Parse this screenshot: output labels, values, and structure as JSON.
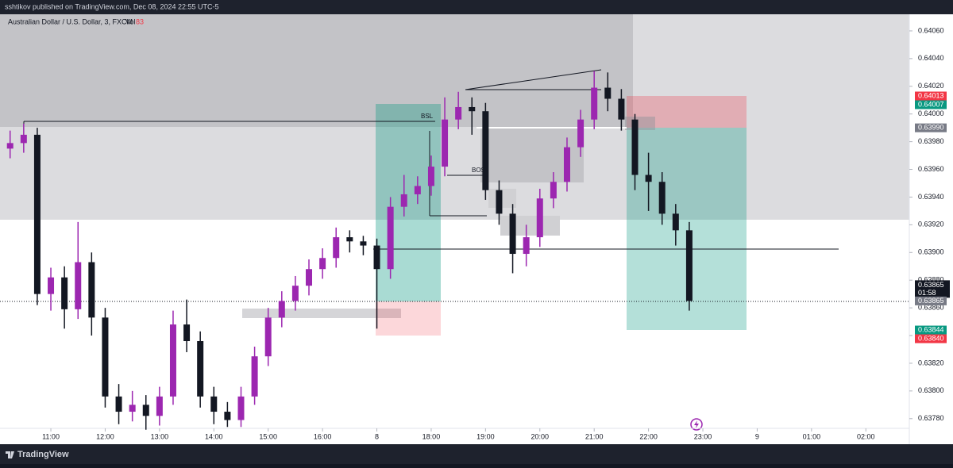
{
  "header": {
    "text": "sshtikov published on TradingView.com, Dec 08, 2024 22:55 UTC-5"
  },
  "footer": {
    "brand": "TradingView"
  },
  "chart_data": {
    "type": "candlestick",
    "symbol": "Australian Dollar / U.S. Dollar, 3, FXCM",
    "volume_label": "Vol",
    "volume_value": 83,
    "annotations": [
      "BSL",
      "BOS"
    ],
    "up_color": "#9c27b0",
    "down_color": "#131722",
    "x": [
      10.25,
      10.5,
      10.75,
      11,
      11.25,
      11.5,
      11.75,
      12,
      12.25,
      12.5,
      12.75,
      13,
      13.25,
      13.5,
      13.75,
      14,
      14.25,
      14.5,
      14.75,
      15,
      15.25,
      15.5,
      15.75,
      16,
      16.25,
      16.5,
      16.75,
      17,
      17.25,
      17.5,
      17.75,
      18,
      18.25,
      18.5,
      18.75,
      19,
      19.25,
      19.5,
      19.75,
      20,
      20.25,
      20.5,
      20.75,
      21,
      21.25,
      21.5,
      21.75,
      22,
      22.25,
      22.5,
      22.75
    ],
    "series": [
      {
        "name": "AUDUSD",
        "open": [
          0.63975,
          0.63979,
          0.63985,
          0.6387,
          0.63882,
          0.63859,
          0.63893,
          0.63853,
          0.63796,
          0.63785,
          0.6379,
          0.63782,
          0.63796,
          0.63848,
          0.63836,
          0.63796,
          0.63785,
          0.63779,
          0.63796,
          0.63825,
          0.63853,
          0.63865,
          0.63876,
          0.63888,
          0.63896,
          0.63911,
          0.63908,
          0.63905,
          0.63888,
          0.63933,
          0.63942,
          0.63948,
          0.63962,
          0.63996,
          0.64005,
          0.64002,
          0.63945,
          0.63928,
          0.63899,
          0.63911,
          0.63939,
          0.63951,
          0.63976,
          0.63996,
          0.64019,
          0.64011,
          0.63996,
          0.63956,
          0.63951,
          0.63928,
          0.63916
        ],
        "high": [
          0.63988,
          0.63993,
          0.6399,
          0.63889,
          0.6389,
          0.63922,
          0.639,
          0.6386,
          0.63805,
          0.638,
          0.63797,
          0.63803,
          0.63858,
          0.63866,
          0.63843,
          0.63803,
          0.63792,
          0.63803,
          0.63832,
          0.6386,
          0.63872,
          0.63883,
          0.63895,
          0.63903,
          0.63918,
          0.63916,
          0.63912,
          0.6391,
          0.6394,
          0.63956,
          0.63955,
          0.6397,
          0.64012,
          0.64016,
          0.64012,
          0.64008,
          0.63952,
          0.63935,
          0.6392,
          0.63946,
          0.63958,
          0.63983,
          0.64003,
          0.64031,
          0.6403,
          0.64018,
          0.64,
          0.63972,
          0.63958,
          0.63935,
          0.63922
        ],
        "low": [
          0.63968,
          0.63972,
          0.63862,
          0.63858,
          0.63845,
          0.63852,
          0.6384,
          0.63788,
          0.63776,
          0.63778,
          0.63772,
          0.63775,
          0.6379,
          0.63828,
          0.63788,
          0.63776,
          0.63774,
          0.63774,
          0.6379,
          0.63818,
          0.63846,
          0.63858,
          0.63869,
          0.63881,
          0.63889,
          0.639,
          0.63898,
          0.63845,
          0.63881,
          0.63926,
          0.63935,
          0.63941,
          0.63955,
          0.63989,
          0.63985,
          0.63938,
          0.6392,
          0.63885,
          0.6389,
          0.63904,
          0.63932,
          0.63944,
          0.63969,
          0.63989,
          0.64002,
          0.63988,
          0.63945,
          0.6393,
          0.6392,
          0.63905,
          0.63858
        ],
        "close": [
          0.63979,
          0.63985,
          0.6387,
          0.63882,
          0.63859,
          0.63893,
          0.63853,
          0.63796,
          0.63785,
          0.6379,
          0.63782,
          0.63796,
          0.63848,
          0.63836,
          0.63796,
          0.63785,
          0.63779,
          0.63796,
          0.63825,
          0.63853,
          0.63865,
          0.63876,
          0.63888,
          0.63896,
          0.63911,
          0.63908,
          0.63905,
          0.63888,
          0.63933,
          0.63942,
          0.63948,
          0.63962,
          0.63996,
          0.64005,
          0.64002,
          0.63945,
          0.63928,
          0.63899,
          0.63911,
          0.63939,
          0.63951,
          0.63976,
          0.63996,
          0.64019,
          0.64011,
          0.63996,
          0.63956,
          0.63951,
          0.63928,
          0.63916,
          0.63865
        ]
      }
    ],
    "xlim": [
      10.064,
      26.8
    ],
    "xticks": [
      {
        "value": 11,
        "label": "11:00"
      },
      {
        "value": 12,
        "label": "12:00"
      },
      {
        "value": 13,
        "label": "13:00"
      },
      {
        "value": 14,
        "label": "14:00"
      },
      {
        "value": 15,
        "label": "15:00"
      },
      {
        "value": 16,
        "label": "16:00"
      },
      {
        "value": 17,
        "label": "8"
      },
      {
        "value": 18,
        "label": "18:00"
      },
      {
        "value": 19,
        "label": "19:00"
      },
      {
        "value": 20,
        "label": "20:00"
      },
      {
        "value": 21,
        "label": "21:00"
      },
      {
        "value": 22,
        "label": "22:00"
      },
      {
        "value": 23,
        "label": "23:00"
      },
      {
        "value": 24,
        "label": "9"
      },
      {
        "value": 25,
        "label": "01:00"
      },
      {
        "value": 26,
        "label": "02:00"
      }
    ],
    "ylim": [
      0.63773,
      0.64072
    ],
    "yticks": [
      {
        "value": 0.6406,
        "label": "0.64060"
      },
      {
        "value": 0.6404,
        "label": "0.64040"
      },
      {
        "value": 0.6402,
        "label": "0.64020"
      },
      {
        "value": 0.64,
        "label": "0.64000"
      },
      {
        "value": 0.6398,
        "label": "0.63980"
      },
      {
        "value": 0.6396,
        "label": "0.63960"
      },
      {
        "value": 0.6394,
        "label": "0.63940"
      },
      {
        "value": 0.6392,
        "label": "0.63920"
      },
      {
        "value": 0.639,
        "label": "0.63900"
      },
      {
        "value": 0.6388,
        "label": "0.63880"
      },
      {
        "value": 0.6386,
        "label": "0.63860"
      },
      {
        "value": 0.6384,
        "label": "0.63840"
      },
      {
        "value": 0.6382,
        "label": "0.63820"
      },
      {
        "value": 0.638,
        "label": "0.63800"
      },
      {
        "value": 0.6378,
        "label": "0.63780"
      }
    ],
    "price_labels": [
      {
        "value": 0.64013,
        "color": "#f23645"
      },
      {
        "value": 0.64007,
        "color": "#089981"
      },
      {
        "value": 0.6399,
        "label": "0.63990",
        "color": "#787b86"
      },
      {
        "value": 0.63865,
        "color": "#131722",
        "countdown": "01:58"
      },
      {
        "value": 0.63865,
        "color": "#787b86"
      },
      {
        "value": 0.63844,
        "color": "#089981"
      },
      {
        "value": 0.6384,
        "label": "0.63840",
        "color": "#f23645"
      }
    ]
  }
}
